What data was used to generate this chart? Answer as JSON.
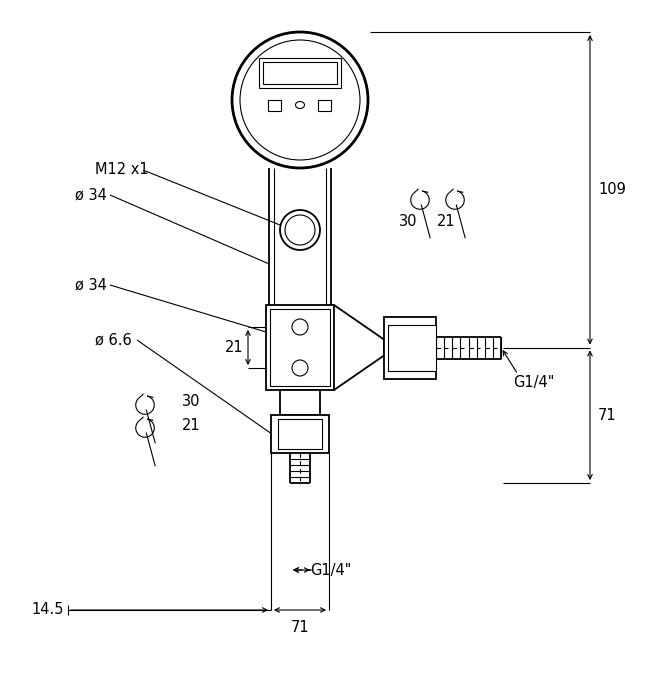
{
  "bg_color": "#ffffff",
  "line_color": "#000000",
  "fig_width": 6.53,
  "fig_height": 7.0,
  "dpi": 100,
  "annotations": {
    "M12x1": "M12 x1",
    "d34_top": "ø 34",
    "d34_mid": "ø 34",
    "d6_6": "ø 6.6",
    "dim_21": "21",
    "dim_109": "109",
    "dim_71_right": "71",
    "dim_71_bot": "71",
    "dim_14_5": "14.5",
    "G14_right": "G1/4\"",
    "G14_bot": "G1/4\"",
    "wrench30_right": "30",
    "wrench21_right": "21",
    "wrench30_bot": "30",
    "wrench21_bot": "21"
  }
}
